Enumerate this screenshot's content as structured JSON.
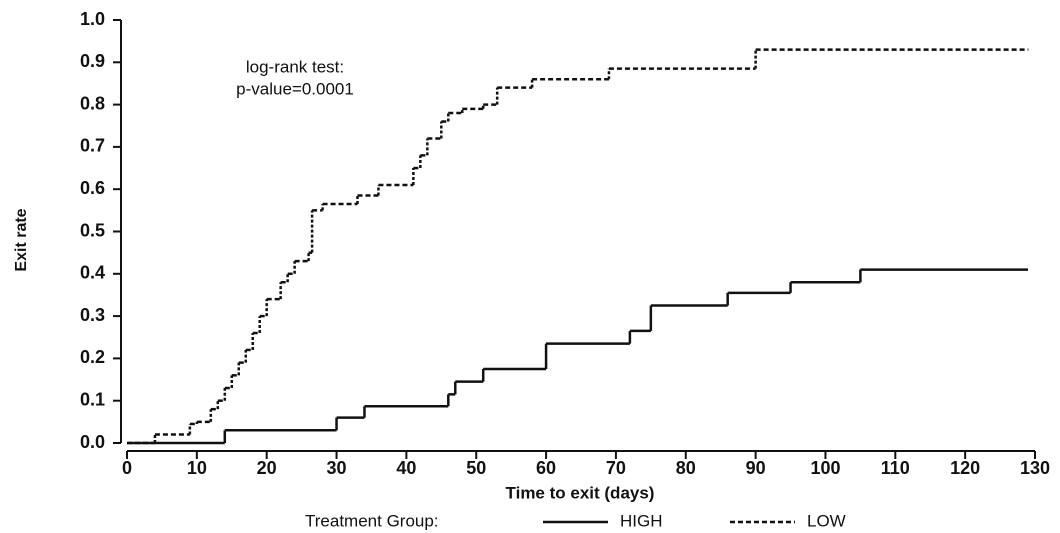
{
  "chart_data": {
    "type": "step",
    "y_label": "Exit rate",
    "x_label": "Time to exit (days)",
    "annotations": [
      "log-rank test:",
      "p-value=0.0001"
    ],
    "legend_title": "Treatment Group:",
    "xlim": [
      0,
      130
    ],
    "xticks": [
      0,
      10,
      20,
      30,
      40,
      50,
      60,
      70,
      80,
      90,
      100,
      110,
      120,
      130
    ],
    "ylim": [
      0,
      1
    ],
    "yticks": [
      {
        "value": 0,
        "label": "0.0"
      },
      {
        "value": 0.1,
        "label": "0.1"
      },
      {
        "value": 0.2,
        "label": "0.2"
      },
      {
        "value": 0.3,
        "label": "0.3"
      },
      {
        "value": 0.4,
        "label": "0.4"
      },
      {
        "value": 0.5,
        "label": "0.5"
      },
      {
        "value": 0.6,
        "label": "0.6"
      },
      {
        "value": 0.7,
        "label": "0.7"
      },
      {
        "value": 0.8,
        "label": "0.8"
      },
      {
        "value": 0.9,
        "label": "0.9"
      },
      {
        "value": 1,
        "label": "1.0"
      }
    ],
    "series": [
      {
        "name": "HIGH",
        "color": "#111111",
        "dash": false,
        "x": [
          0,
          14,
          30,
          34,
          46,
          47,
          51,
          60,
          72,
          75,
          86,
          95,
          105,
          129
        ],
        "values": [
          0,
          0.03,
          0.06,
          0.087,
          0.115,
          0.145,
          0.175,
          0.235,
          0.265,
          0.325,
          0.355,
          0.38,
          0.41,
          0.41
        ]
      },
      {
        "name": "LOW",
        "color": "#111111",
        "dash": true,
        "x": [
          0,
          4,
          9,
          10,
          12,
          13,
          14,
          15,
          16,
          17,
          18,
          19,
          20,
          22,
          23,
          24,
          26,
          26.5,
          28,
          33,
          36,
          41,
          42,
          43,
          45,
          46,
          48,
          51,
          53,
          58,
          69,
          90,
          129
        ],
        "values": [
          0,
          0.02,
          0.045,
          0.05,
          0.08,
          0.1,
          0.13,
          0.16,
          0.19,
          0.22,
          0.26,
          0.3,
          0.34,
          0.38,
          0.4,
          0.43,
          0.45,
          0.55,
          0.565,
          0.585,
          0.61,
          0.65,
          0.68,
          0.72,
          0.76,
          0.78,
          0.79,
          0.8,
          0.84,
          0.86,
          0.885,
          0.93,
          0.93
        ]
      }
    ]
  }
}
